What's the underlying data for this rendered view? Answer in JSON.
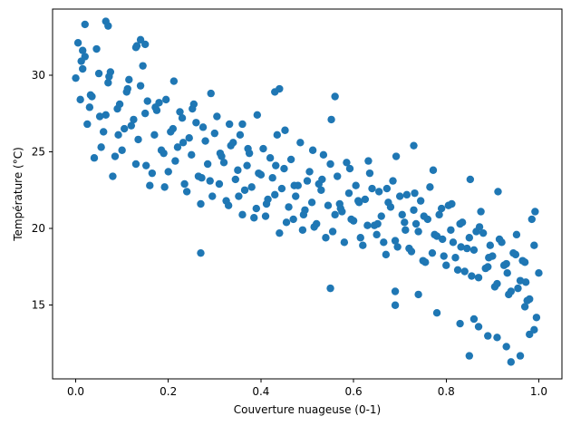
{
  "chart_data": {
    "type": "scatter",
    "title": "",
    "xlabel": "Couverture nuageuse (0-1)",
    "ylabel": "Température (°C)",
    "xlim": [
      -0.05,
      1.05
    ],
    "ylim": [
      10.2,
      34.3
    ],
    "xticks": [
      0.0,
      0.2,
      0.4,
      0.6,
      0.8,
      1.0
    ],
    "xtick_labels": [
      "0.0",
      "0.2",
      "0.4",
      "0.6",
      "0.8",
      "1.0"
    ],
    "yticks": [
      15,
      20,
      25,
      30
    ],
    "ytick_labels": [
      "15",
      "20",
      "25",
      "30"
    ],
    "grid": false,
    "marker_color": "#1f77b4",
    "series": [
      {
        "x": [
          0.0,
          0.01,
          0.02,
          0.03,
          0.04,
          0.05,
          0.06,
          0.07,
          0.08,
          0.09,
          0.1,
          0.11,
          0.12,
          0.13,
          0.14,
          0.15,
          0.16,
          0.17,
          0.18,
          0.19,
          0.2,
          0.21,
          0.22,
          0.23,
          0.24,
          0.25,
          0.26,
          0.27,
          0.28,
          0.29,
          0.3,
          0.31,
          0.32,
          0.33,
          0.34,
          0.35,
          0.36,
          0.37,
          0.38,
          0.39,
          0.4,
          0.41,
          0.42,
          0.43,
          0.44,
          0.45,
          0.46,
          0.47,
          0.48,
          0.49,
          0.5,
          0.51,
          0.52,
          0.53,
          0.54,
          0.55,
          0.56,
          0.57,
          0.58,
          0.59,
          0.6,
          0.61,
          0.62,
          0.63,
          0.64,
          0.65,
          0.66,
          0.67,
          0.68,
          0.69,
          0.7,
          0.71,
          0.72,
          0.73,
          0.74,
          0.75,
          0.76,
          0.77,
          0.78,
          0.79,
          0.8,
          0.81,
          0.82,
          0.83,
          0.84,
          0.85,
          0.86,
          0.87,
          0.88,
          0.89,
          0.9,
          0.91,
          0.92,
          0.93,
          0.94,
          0.95,
          0.96,
          0.97,
          0.98,
          0.99,
          1.0,
          0.005,
          0.015,
          0.025,
          0.035,
          0.045,
          0.055,
          0.065,
          0.075,
          0.085,
          0.095,
          0.105,
          0.115,
          0.125,
          0.135,
          0.145,
          0.155,
          0.165,
          0.175,
          0.185,
          0.195,
          0.205,
          0.215,
          0.225,
          0.235,
          0.245,
          0.255,
          0.265,
          0.275,
          0.285,
          0.295,
          0.305,
          0.315,
          0.325,
          0.335,
          0.345,
          0.355,
          0.365,
          0.375,
          0.385,
          0.395,
          0.405,
          0.415,
          0.425,
          0.435,
          0.445,
          0.455,
          0.465,
          0.475,
          0.485,
          0.495,
          0.505,
          0.515,
          0.525,
          0.535,
          0.545,
          0.555,
          0.565,
          0.575,
          0.585,
          0.595,
          0.605,
          0.615,
          0.625,
          0.635,
          0.645,
          0.655,
          0.665,
          0.675,
          0.685,
          0.695,
          0.705,
          0.715,
          0.725,
          0.735,
          0.745,
          0.755,
          0.765,
          0.775,
          0.785,
          0.795,
          0.805,
          0.815,
          0.825,
          0.835,
          0.845,
          0.855,
          0.865,
          0.875,
          0.885,
          0.895,
          0.905,
          0.915,
          0.925,
          0.935,
          0.945,
          0.955,
          0.965,
          0.975,
          0.985,
          0.995,
          0.012,
          0.032,
          0.052,
          0.072,
          0.092,
          0.112,
          0.132,
          0.152,
          0.172,
          0.192,
          0.212,
          0.232,
          0.252,
          0.272,
          0.292,
          0.312,
          0.332,
          0.352,
          0.372,
          0.392,
          0.412,
          0.432,
          0.452,
          0.472,
          0.492,
          0.512,
          0.532,
          0.552,
          0.572,
          0.592,
          0.612,
          0.632,
          0.652,
          0.672,
          0.692,
          0.712,
          0.732,
          0.752,
          0.772,
          0.792,
          0.812,
          0.832,
          0.852,
          0.872,
          0.892,
          0.912,
          0.932,
          0.952,
          0.972,
          0.992,
          0.065,
          0.07,
          0.02,
          0.015,
          0.14,
          0.15,
          0.13,
          0.87,
          0.85,
          0.94,
          0.96,
          0.98,
          0.91,
          0.55,
          0.56,
          0.44,
          0.43,
          0.36,
          0.27,
          0.69,
          0.73,
          0.69,
          0.74,
          0.78,
          0.83,
          0.86,
          0.89,
          0.93,
          0.97,
          0.99
        ],
        "y": [
          29.8,
          28.4,
          31.2,
          27.9,
          24.6,
          30.1,
          26.3,
          29.5,
          23.4,
          27.8,
          25.1,
          28.9,
          26.7,
          24.2,
          29.3,
          27.5,
          22.8,
          26.1,
          28.2,
          24.9,
          23.7,
          26.5,
          25.3,
          27.2,
          22.4,
          24.8,
          26.9,
          21.6,
          25.7,
          23.1,
          26.2,
          22.9,
          24.3,
          21.5,
          25.6,
          23.8,
          20.9,
          24.1,
          22.7,
          21.3,
          23.5,
          20.8,
          24.6,
          22.2,
          19.7,
          23.9,
          21.4,
          20.6,
          22.8,
          19.9,
          23.1,
          21.7,
          20.3,
          22.5,
          19.4,
          24.2,
          20.9,
          21.6,
          19.1,
          22.3,
          20.5,
          21.8,
          18.9,
          20.2,
          22.6,
          19.6,
          20.8,
          18.3,
          21.4,
          19.2,
          22.1,
          20.4,
          18.7,
          21.2,
          19.8,
          17.9,
          20.6,
          18.4,
          19.5,
          21.3,
          17.6,
          19.9,
          18.1,
          20.3,
          17.2,
          19.4,
          18.6,
          16.8,
          19.7,
          17.5,
          18.2,
          16.4,
          19.1,
          17.7,
          15.9,
          18.3,
          16.6,
          17.8,
          15.4,
          18.9,
          17.1,
          32.1,
          30.4,
          26.8,
          28.6,
          31.7,
          25.3,
          27.4,
          30.2,
          24.7,
          28.1,
          26.5,
          29.7,
          27.1,
          25.8,
          30.6,
          28.3,
          23.6,
          27.7,
          25.1,
          28.4,
          26.3,
          24.4,
          27.6,
          22.9,
          25.9,
          28.1,
          23.4,
          26.6,
          24.2,
          22.1,
          27.3,
          24.7,
          21.8,
          25.4,
          23.2,
          26.1,
          22.5,
          24.9,
          20.7,
          23.6,
          25.2,
          21.9,
          23.3,
          26.1,
          22.6,
          20.4,
          24.5,
          22.1,
          25.6,
          21.2,
          23.7,
          20.1,
          22.9,
          24.8,
          21.5,
          19.8,
          23.4,
          21.1,
          24.3,
          20.6,
          22.8,
          19.4,
          21.9,
          23.6,
          20.2,
          22.4,
          19.1,
          21.7,
          23.1,
          18.8,
          20.9,
          22.2,
          18.5,
          20.3,
          21.8,
          17.8,
          22.7,
          19.6,
          20.9,
          18.2,
          21.5,
          19.1,
          17.3,
          20.4,
          18.7,
          16.9,
          19.8,
          21.1,
          17.4,
          18.9,
          16.2,
          19.3,
          17.6,
          15.7,
          18.4,
          16.1,
          17.9,
          15.3,
          20.6,
          14.2,
          30.9,
          28.7,
          27.3,
          29.9,
          26.1,
          29.1,
          31.9,
          24.1,
          27.9,
          22.7,
          29.6,
          25.6,
          27.8,
          23.3,
          28.8,
          24.9,
          26.8,
          22.1,
          25.2,
          27.4,
          21.6,
          24.1,
          26.4,
          22.8,
          20.9,
          25.1,
          23.2,
          27.1,
          21.3,
          23.9,
          21.7,
          24.4,
          20.3,
          22.6,
          24.7,
          19.9,
          22.3,
          20.8,
          23.8,
          19.3,
          21.6,
          18.8,
          23.2,
          20.1,
          18.1,
          22.4,
          17.1,
          19.6,
          16.5,
          21.1,
          33.5,
          33.2,
          33.3,
          31.6,
          32.3,
          32.0,
          31.8,
          13.6,
          11.7,
          11.3,
          11.7,
          13.1,
          12.9,
          16.1,
          28.6,
          29.1,
          28.9,
          26.8,
          18.4,
          15.9,
          25.4,
          15.0,
          15.7,
          14.5,
          13.8,
          14.1,
          13.0,
          12.3,
          14.9,
          13.4
        ]
      }
    ]
  }
}
